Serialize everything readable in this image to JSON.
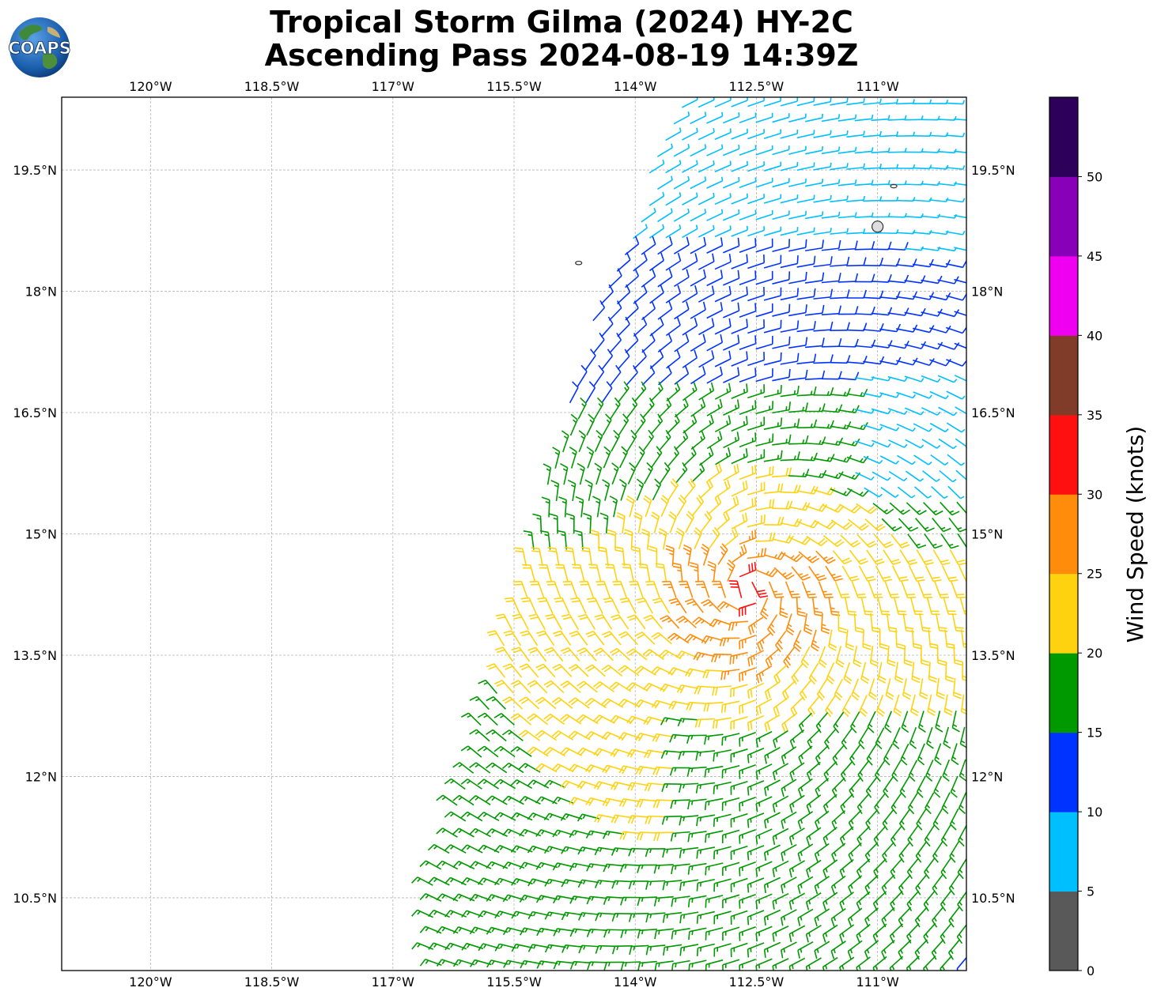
{
  "title": {
    "line1": "Tropical Storm Gilma (2024) HY-2C",
    "line2": "Ascending Pass 2024-08-19 14:39Z"
  },
  "logo": {
    "text": "COAPS",
    "icon": "globe-logo"
  },
  "map": {
    "lon_ticks": [
      {
        "lon": -120.0,
        "label": "120°W"
      },
      {
        "lon": -118.5,
        "label": "118.5°W"
      },
      {
        "lon": -117.0,
        "label": "117°W"
      },
      {
        "lon": -115.5,
        "label": "115.5°W"
      },
      {
        "lon": -114.0,
        "label": "114°W"
      },
      {
        "lon": -112.5,
        "label": "112.5°W"
      },
      {
        "lon": -111.0,
        "label": "111°W"
      }
    ],
    "lat_ticks": [
      {
        "lat": 19.5,
        "label": "19.5°N"
      },
      {
        "lat": 18.0,
        "label": "18°N"
      },
      {
        "lat": 16.5,
        "label": "16.5°N"
      },
      {
        "lat": 15.0,
        "label": "15°N"
      },
      {
        "lat": 13.5,
        "label": "13.5°N"
      },
      {
        "lat": 12.0,
        "label": "12°N"
      },
      {
        "lat": 10.5,
        "label": "10.5°N"
      }
    ],
    "extent": {
      "lon_min": -121.1,
      "lon_max": -109.9,
      "lat_min": 9.6,
      "lat_max": 20.4
    },
    "grid": true,
    "islands": [
      {
        "name": "Isla Socorro",
        "lon": -111.0,
        "lat": 18.8
      },
      {
        "name": "Isla Clarion",
        "lon": -114.7,
        "lat": 18.35
      },
      {
        "name": "Isla San Benedicto",
        "lon": -110.8,
        "lat": 19.3
      }
    ],
    "wind_field": {
      "type": "wind barbs (knots)",
      "storm_center": {
        "lon": -112.6,
        "lat": 14.3
      },
      "max_wind_kt": 34,
      "swath": "HY-2C ascending pass covering the eastern part of the map"
    }
  },
  "colorbar": {
    "label": "Wind Speed (knots)",
    "bins": [
      {
        "from": 0,
        "to": 5,
        "color": "#595959"
      },
      {
        "from": 5,
        "to": 10,
        "color": "#00bfff"
      },
      {
        "from": 10,
        "to": 15,
        "color": "#0033ff"
      },
      {
        "from": 15,
        "to": 20,
        "color": "#009900"
      },
      {
        "from": 20,
        "to": 25,
        "color": "#ffd20f"
      },
      {
        "from": 25,
        "to": 30,
        "color": "#ff8c0a"
      },
      {
        "from": 30,
        "to": 35,
        "color": "#ff1010"
      },
      {
        "from": 35,
        "to": 40,
        "color": "#803b29"
      },
      {
        "from": 40,
        "to": 45,
        "color": "#f000f0"
      },
      {
        "from": 45,
        "to": 50,
        "color": "#8800b8"
      },
      {
        "from": 50,
        "to": 55,
        "color": "#2d005a"
      }
    ],
    "ticks": [
      "0",
      "5",
      "10",
      "15",
      "20",
      "25",
      "30",
      "35",
      "40",
      "45",
      "50"
    ]
  }
}
